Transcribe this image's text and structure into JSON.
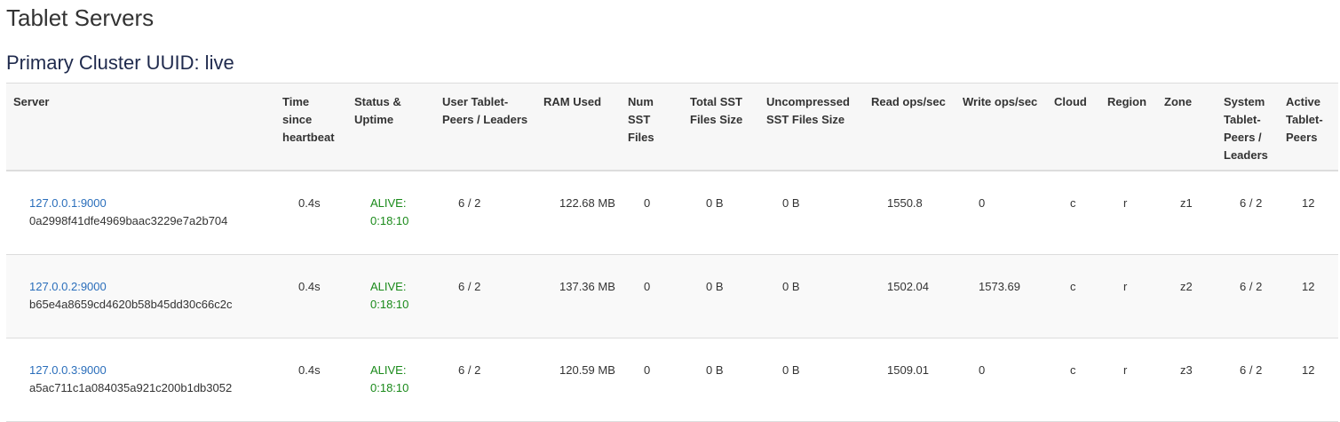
{
  "title": "Tablet Servers",
  "subtitle": "Primary Cluster UUID: live",
  "columns": [
    "Server",
    "Time since heartbeat",
    "Status & Uptime",
    "User Tablet-Peers / Leaders",
    "RAM Used",
    "Num SST Files",
    "Total SST Files Size",
    "Uncompressed SST Files Size",
    "Read ops/sec",
    "Write ops/sec",
    "Cloud",
    "Region",
    "Zone",
    "System Tablet-Peers / Leaders",
    "Active Tablet-Peers"
  ],
  "rows": [
    {
      "address": "127.0.0.1:9000",
      "uuid": "0a2998f41dfe4969baac3229e7a2b704",
      "heartbeat": "0.4s",
      "status": "ALIVE:",
      "uptime": "0:18:10",
      "user_tablets": "6 / 2",
      "ram": "122.68 MB",
      "num_sst": "0",
      "total_sst": "0 B",
      "uncompressed_sst": "0 B",
      "read_ops": "1550.8",
      "write_ops": "0",
      "cloud": "c",
      "region": "r",
      "zone": "z1",
      "system_tablets": "6 / 2",
      "active_peers": "12"
    },
    {
      "address": "127.0.0.2:9000",
      "uuid": "b65e4a8659cd4620b58b45dd30c66c2c",
      "heartbeat": "0.4s",
      "status": "ALIVE:",
      "uptime": "0:18:10",
      "user_tablets": "6 / 2",
      "ram": "137.36 MB",
      "num_sst": "0",
      "total_sst": "0 B",
      "uncompressed_sst": "0 B",
      "read_ops": "1502.04",
      "write_ops": "1573.69",
      "cloud": "c",
      "region": "r",
      "zone": "z2",
      "system_tablets": "6 / 2",
      "active_peers": "12"
    },
    {
      "address": "127.0.0.3:9000",
      "uuid": "a5ac711c1a084035a921c200b1db3052",
      "heartbeat": "0.4s",
      "status": "ALIVE:",
      "uptime": "0:18:10",
      "user_tablets": "6 / 2",
      "ram": "120.59 MB",
      "num_sst": "0",
      "total_sst": "0 B",
      "uncompressed_sst": "0 B",
      "read_ops": "1509.01",
      "write_ops": "0",
      "cloud": "c",
      "region": "r",
      "zone": "z3",
      "system_tablets": "6 / 2",
      "active_peers": "12"
    }
  ],
  "colors": {
    "link": "#2a6ebb",
    "alive": "#1a8a1a"
  }
}
